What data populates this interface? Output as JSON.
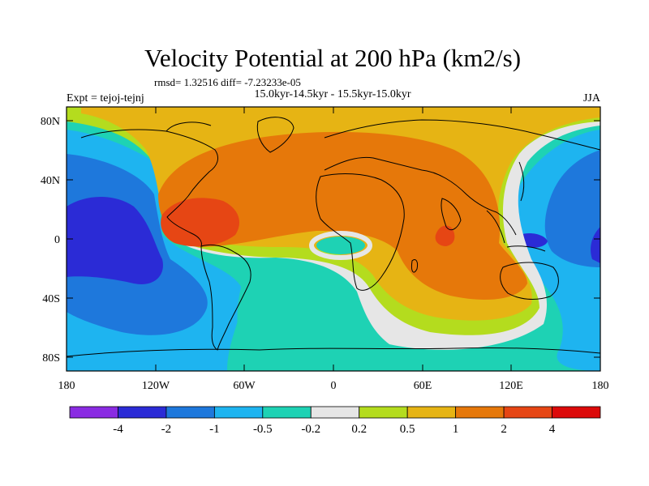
{
  "title": "Velocity Potential at 200 hPa (km2/s)",
  "stats_line": "rmsd= 1.32516 diff= -7.23233e-05",
  "left_label": "Expt = tejoj-tejnj",
  "center_label": "15.0kyr-14.5kyr - 15.5kyr-15.0kyr",
  "right_label": "JJA",
  "lat_ticks": [
    "80N",
    "40N",
    "0",
    "40S",
    "80S"
  ],
  "lon_ticks": [
    "180",
    "120W",
    "60W",
    "0",
    "60E",
    "120E",
    "180"
  ],
  "colorbar": {
    "colors": [
      "#8a2be2",
      "#2b2bd6",
      "#1e78dc",
      "#1eb4f0",
      "#1ed2b4",
      "#e6e6e6",
      "#b4dc1e",
      "#e6b414",
      "#e6780a",
      "#e64614",
      "#dc0a0a"
    ],
    "labels": [
      "-4",
      "-2",
      "-1",
      "-0.5",
      "-0.2",
      "0.2",
      "0.5",
      "1",
      "2",
      "4"
    ]
  },
  "map_colors": {
    "blue_dark": "#2b2bd6",
    "blue": "#1e78dc",
    "sky": "#1eb4f0",
    "teal": "#1ed2b4",
    "gray": "#e6e6e6",
    "yellow_green": "#b4dc1e",
    "yellow": "#e6b414",
    "orange": "#e6780a",
    "red_orange": "#e64614",
    "red": "#dc0a0a",
    "purple": "#8a2be2"
  }
}
